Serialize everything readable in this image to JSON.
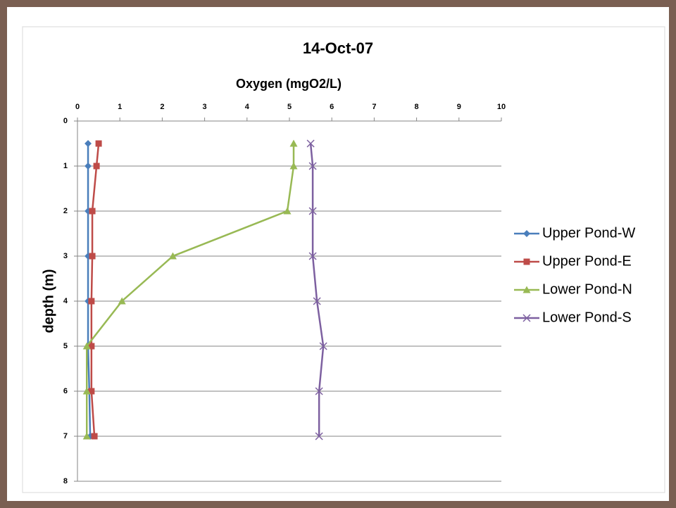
{
  "chart_data": {
    "type": "line",
    "title": "14-Oct-07",
    "x_label": "Oxygen (mgO2/L)",
    "y_label": "depth (m)",
    "y": [
      0.5,
      1,
      2,
      3,
      4,
      5,
      6,
      7
    ],
    "series": [
      {
        "name": "Upper Pond-W",
        "color": "#4a7ebb",
        "marker": "diamond",
        "values": [
          0.25,
          0.25,
          0.25,
          0.25,
          0.25,
          0.25,
          0.28,
          0.3
        ]
      },
      {
        "name": "Upper Pond-E",
        "color": "#be4b48",
        "marker": "square",
        "values": [
          0.5,
          0.45,
          0.35,
          0.35,
          0.33,
          0.33,
          0.33,
          0.4
        ]
      },
      {
        "name": "Lower Pond-N",
        "color": "#98b954",
        "marker": "triangle",
        "values": [
          5.1,
          5.1,
          4.95,
          2.25,
          1.05,
          0.22,
          0.22,
          0.22
        ]
      },
      {
        "name": "Lower Pond-S",
        "color": "#7d60a0",
        "marker": "x",
        "values": [
          5.5,
          5.55,
          5.55,
          5.55,
          5.65,
          5.8,
          5.7,
          5.7
        ]
      }
    ],
    "xlim": [
      0,
      10
    ],
    "xticks": [
      0,
      1,
      2,
      3,
      4,
      5,
      6,
      7,
      8,
      9,
      10
    ],
    "ylim": [
      0,
      8
    ],
    "yticks": [
      0,
      1,
      2,
      3,
      4,
      5,
      6,
      7,
      8
    ],
    "y_inverted": true,
    "grid": true,
    "legend": "right"
  }
}
